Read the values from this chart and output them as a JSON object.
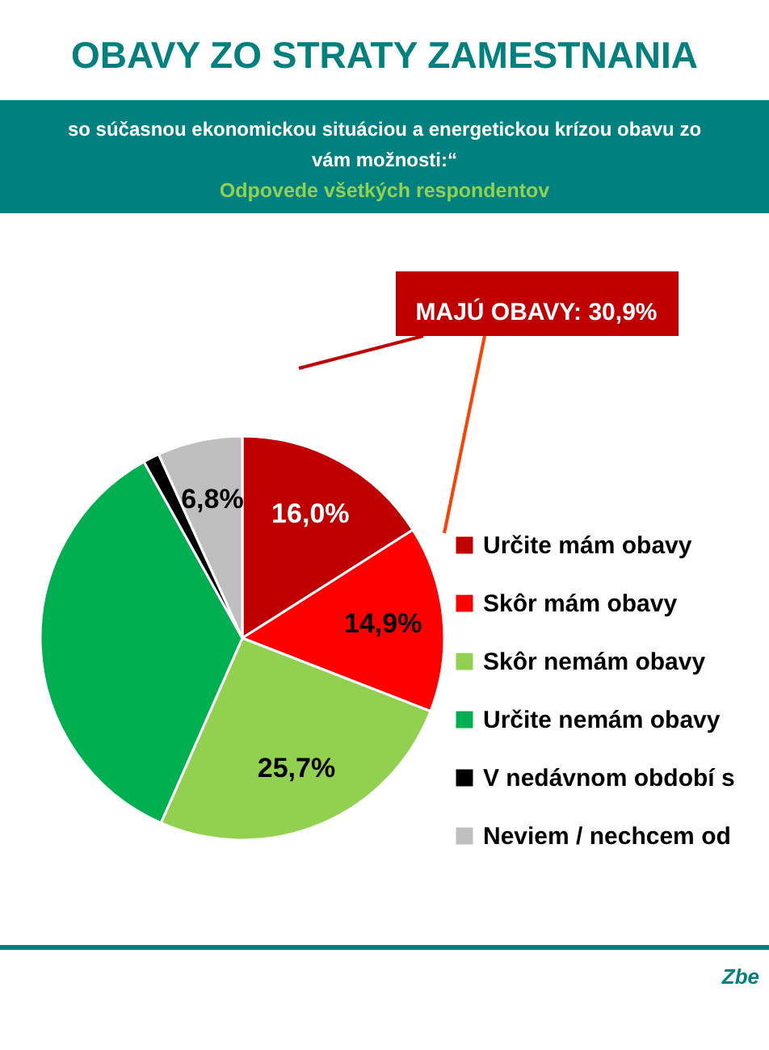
{
  "chart_data": {
    "type": "pie",
    "title": "OBAVY ZO STRATY ZAMESTNANIA",
    "subtitle": [
      "so súčasnou ekonomickou situáciou a energetickou krízou obavu zo",
      "vám možnosti:“",
      "Odpovede všetkých respondentov"
    ],
    "categories": [
      "Určite mám obavy",
      "Skôr mám obavy",
      "Skôr nemám obavy",
      "Určite nemám obavy",
      "V nedávnom období s",
      "Neviem / nechcem od"
    ],
    "values": [
      16.0,
      14.9,
      25.7,
      35.3,
      1.3,
      6.8
    ],
    "colors": [
      "#c00000",
      "#ff0000",
      "#92d050",
      "#00b050",
      "#000000",
      "#bfbfbf"
    ],
    "value_labels": [
      "16,0%",
      "14,9%",
      "25,7%",
      null,
      null,
      "6,8%"
    ],
    "legend": "right",
    "annotations": [
      "MAJÚ OBAVY: 30,9%",
      "Zbe"
    ]
  }
}
